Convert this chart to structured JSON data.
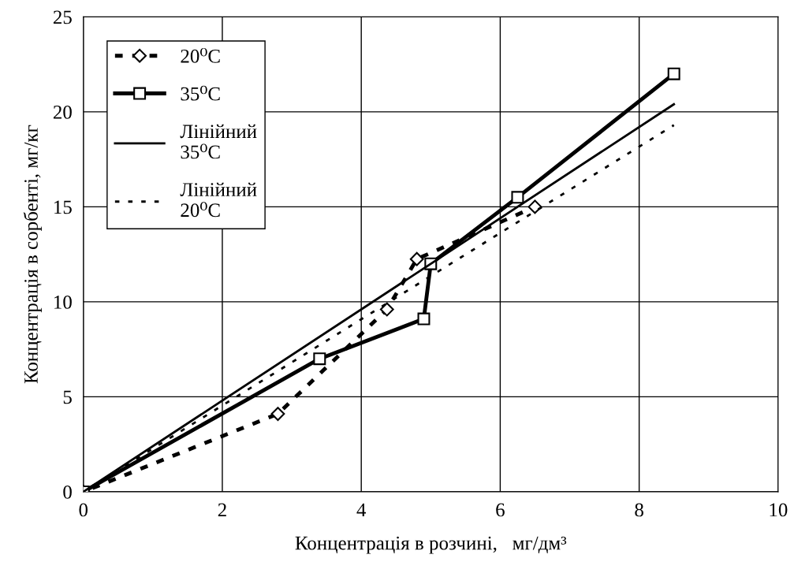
{
  "chart_data": {
    "type": "line",
    "xlabel": "Концентрація в розчині,   мг/дм³",
    "ylabel": "Концентрація в сорбенті, мг/кг",
    "xlim": [
      0,
      10
    ],
    "ylim": [
      0,
      25
    ],
    "xticks": [
      0,
      2,
      4,
      6,
      8,
      10
    ],
    "yticks": [
      0,
      5,
      10,
      15,
      20,
      25
    ],
    "grid": true,
    "legend": "top left",
    "series": [
      {
        "name": "20⁰C",
        "color": "#000000",
        "marker": "diamond",
        "line_style": "dashed",
        "x": [
          0,
          2.8,
          4.37,
          4.8,
          6.5
        ],
        "values": [
          0,
          4.1,
          9.6,
          12.25,
          15
        ]
      },
      {
        "name": "35⁰C",
        "color": "#000000",
        "marker": "square",
        "line_style": "solid",
        "x": [
          0,
          3.4,
          4.9,
          5.0,
          6.25,
          8.5
        ],
        "values": [
          0,
          7,
          9.1,
          12,
          15.5,
          22
        ]
      },
      {
        "name": "Лінійний\n35⁰C",
        "color": "#000000",
        "marker": "none",
        "line_style": "solid",
        "x": [
          0,
          8.5
        ],
        "values": [
          0,
          20.4
        ]
      },
      {
        "name": "Лінійний\n20⁰C",
        "color": "#000000",
        "marker": "none",
        "line_style": "dotted",
        "x": [
          0,
          8.5
        ],
        "values": [
          0,
          19.3
        ]
      }
    ]
  }
}
